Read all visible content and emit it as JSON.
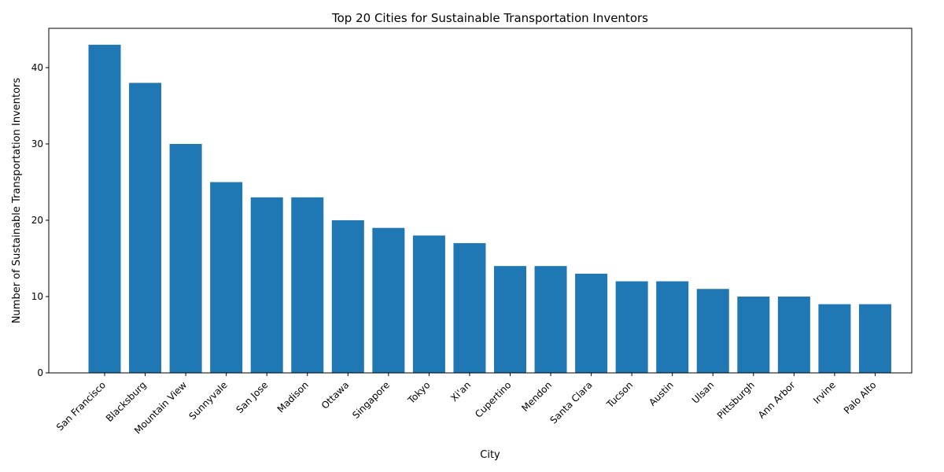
{
  "chart_data": {
    "type": "bar",
    "title": "Top 20 Cities for Sustainable Transportation Inventors",
    "xlabel": "City",
    "ylabel": "Number of Sustainable Transportation Inventors",
    "categories": [
      "San Francisco",
      "Blacksburg",
      "Mountain View",
      "Sunnyvale",
      "San Jose",
      "Madison",
      "Ottawa",
      "Singapore",
      "Tokyo",
      "Xi'an",
      "Cupertino",
      "Mendon",
      "Santa Clara",
      "Tucson",
      "Austin",
      "Ulsan",
      "Pittsburgh",
      "Ann Arbor",
      "Irvine",
      "Palo Alto"
    ],
    "values": [
      43,
      38,
      30,
      25,
      23,
      23,
      20,
      19,
      18,
      17,
      14,
      14,
      13,
      12,
      12,
      11,
      10,
      10,
      9,
      9
    ],
    "yticks": [
      "0",
      "10",
      "20",
      "30",
      "40"
    ],
    "ylim": [
      0,
      45.15
    ],
    "grid": false,
    "legend": "none",
    "bar_color": "#1f77b4"
  }
}
